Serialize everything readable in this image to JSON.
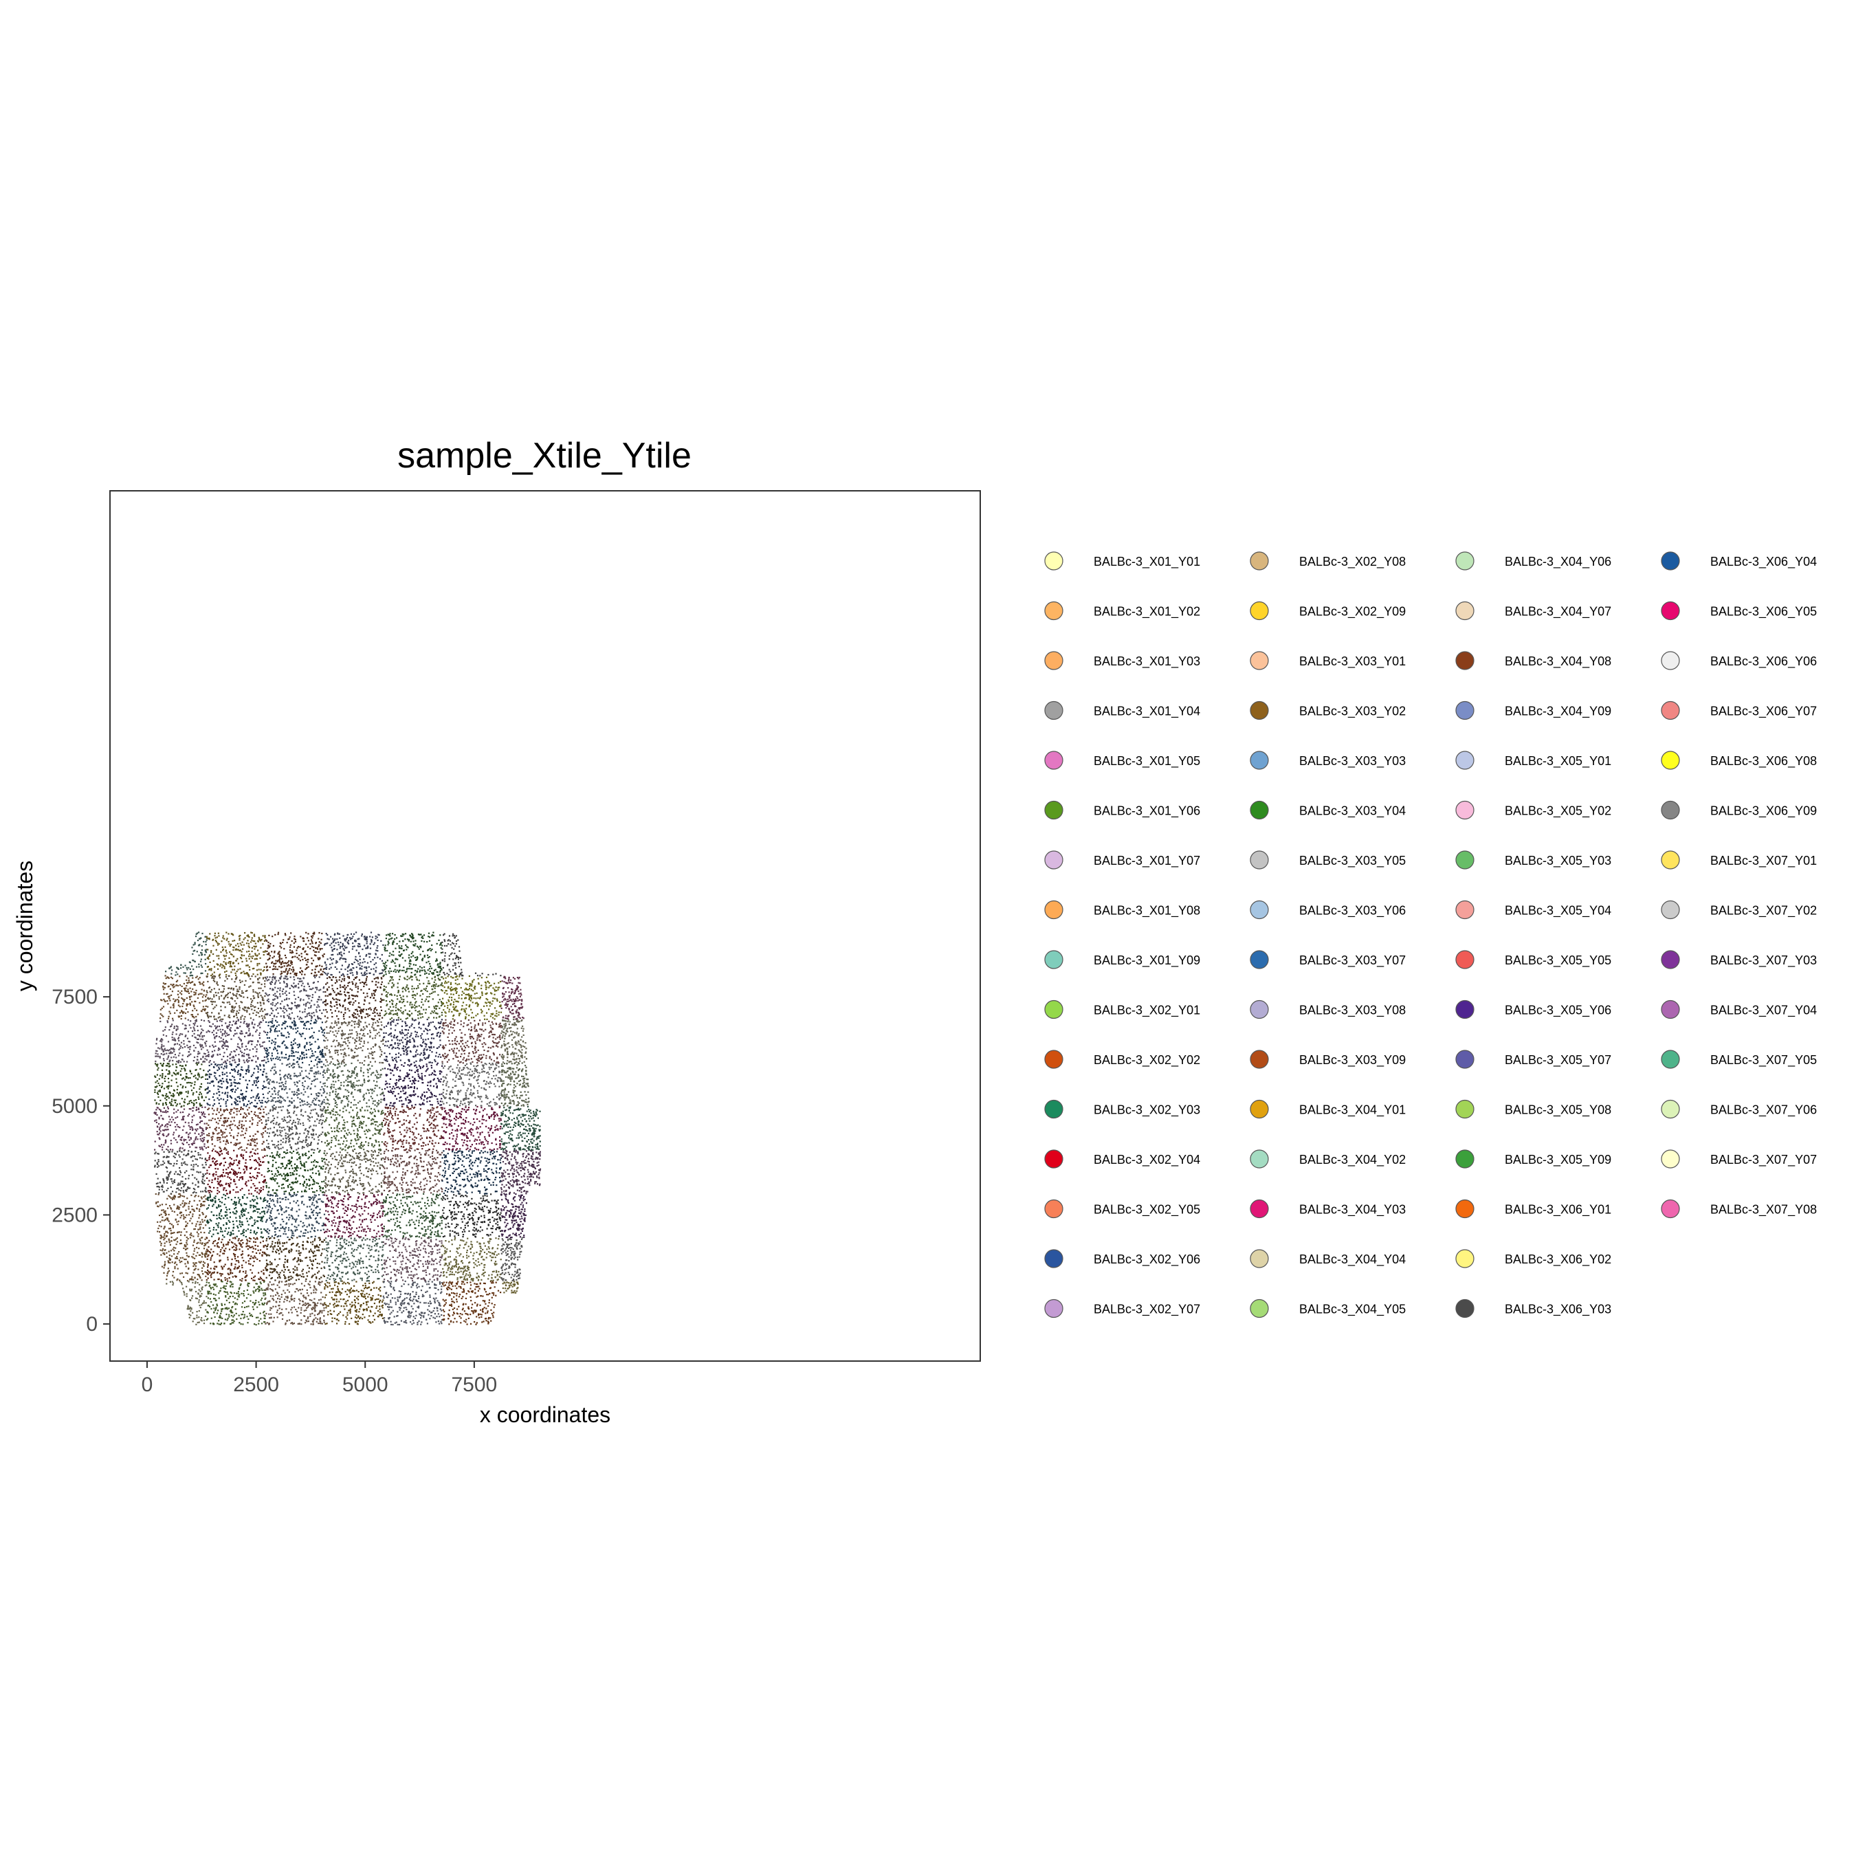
{
  "chart_data": {
    "type": "scatter",
    "title": "sample_Xtile_Ytile",
    "xlabel": "x coordinates",
    "ylabel": "y coordinates",
    "xlim": [
      -850,
      19100
    ],
    "ylim": [
      -850,
      19100
    ],
    "x_ticks": [
      0,
      2500,
      5000,
      7500
    ],
    "x_tick_labels": [
      "0",
      "2500",
      "5000",
      "7500"
    ],
    "y_ticks": [
      0,
      2500,
      5000,
      7500
    ],
    "y_tick_labels": [
      "0",
      "2500",
      "5000",
      "7500"
    ],
    "legend_position": "right",
    "legend_columns": 4,
    "tile_grid": {
      "x_breaks": [
        0,
        1350,
        2700,
        4050,
        5400,
        6750,
        8100,
        9000
      ],
      "y_breaks": [
        0,
        1000,
        2000,
        3000,
        4000,
        5000,
        6000,
        7000,
        8000,
        9000
      ]
    },
    "categories": [
      {
        "label": "BALBc-3_X01_Y01",
        "color": "#FFFFB3",
        "tile": [
          1,
          1
        ]
      },
      {
        "label": "BALBc-3_X01_Y02",
        "color": "#FDB462",
        "tile": [
          1,
          2
        ]
      },
      {
        "label": "BALBc-3_X01_Y03",
        "color": "#FDAE61",
        "tile": [
          1,
          3
        ]
      },
      {
        "label": "BALBc-3_X01_Y04",
        "color": "#A0A0A0",
        "tile": [
          1,
          4
        ]
      },
      {
        "label": "BALBc-3_X01_Y05",
        "color": "#E377C2",
        "tile": [
          1,
          5
        ]
      },
      {
        "label": "BALBc-3_X01_Y06",
        "color": "#5A9A1E",
        "tile": [
          1,
          6
        ]
      },
      {
        "label": "BALBc-3_X01_Y07",
        "color": "#D9B8E0",
        "tile": [
          1,
          7
        ]
      },
      {
        "label": "BALBc-3_X01_Y08",
        "color": "#FDAA55",
        "tile": [
          1,
          8
        ]
      },
      {
        "label": "BALBc-3_X01_Y09",
        "color": "#7FCDBB",
        "tile": [
          1,
          9
        ]
      },
      {
        "label": "BALBc-3_X02_Y01",
        "color": "#94D84A",
        "tile": [
          2,
          1
        ]
      },
      {
        "label": "BALBc-3_X02_Y02",
        "color": "#D0500E",
        "tile": [
          2,
          2
        ]
      },
      {
        "label": "BALBc-3_X02_Y03",
        "color": "#1B8B5E",
        "tile": [
          2,
          3
        ]
      },
      {
        "label": "BALBc-3_X02_Y04",
        "color": "#E0001A",
        "tile": [
          2,
          4
        ]
      },
      {
        "label": "BALBc-3_X02_Y05",
        "color": "#F78058",
        "tile": [
          2,
          5
        ]
      },
      {
        "label": "BALBc-3_X02_Y06",
        "color": "#2A559F",
        "tile": [
          2,
          6
        ]
      },
      {
        "label": "BALBc-3_X02_Y07",
        "color": "#C39BD3",
        "tile": [
          2,
          7
        ]
      },
      {
        "label": "BALBc-3_X02_Y08",
        "color": "#D8B57D",
        "tile": [
          2,
          8
        ]
      },
      {
        "label": "BALBc-3_X02_Y09",
        "color": "#FFD42A",
        "tile": [
          2,
          9
        ]
      },
      {
        "label": "BALBc-3_X03_Y01",
        "color": "#FBC29A",
        "tile": [
          3,
          1
        ]
      },
      {
        "label": "BALBc-3_X03_Y02",
        "color": "#8E611C",
        "tile": [
          3,
          2
        ]
      },
      {
        "label": "BALBc-3_X03_Y03",
        "color": "#6FA2D1",
        "tile": [
          3,
          3
        ]
      },
      {
        "label": "BALBc-3_X03_Y04",
        "color": "#2E8B1F",
        "tile": [
          3,
          4
        ]
      },
      {
        "label": "BALBc-3_X03_Y05",
        "color": "#C3C3C3",
        "tile": [
          3,
          5
        ]
      },
      {
        "label": "BALBc-3_X03_Y06",
        "color": "#A6C5E2",
        "tile": [
          3,
          6
        ]
      },
      {
        "label": "BALBc-3_X03_Y07",
        "color": "#2C6CAE",
        "tile": [
          3,
          7
        ]
      },
      {
        "label": "BALBc-3_X03_Y08",
        "color": "#B3ACD3",
        "tile": [
          3,
          8
        ]
      },
      {
        "label": "BALBc-3_X03_Y09",
        "color": "#B24C17",
        "tile": [
          3,
          9
        ]
      },
      {
        "label": "BALBc-3_X04_Y01",
        "color": "#E0A10F",
        "tile": [
          4,
          1
        ]
      },
      {
        "label": "BALBc-3_X04_Y02",
        "color": "#A4DCC2",
        "tile": [
          4,
          2
        ]
      },
      {
        "label": "BALBc-3_X04_Y03",
        "color": "#E01676",
        "tile": [
          4,
          3
        ]
      },
      {
        "label": "BALBc-3_X04_Y04",
        "color": "#DED3A8",
        "tile": [
          4,
          4
        ]
      },
      {
        "label": "BALBc-3_X04_Y05",
        "color": "#A5DB76",
        "tile": [
          4,
          5
        ]
      },
      {
        "label": "BALBc-3_X04_Y06",
        "color": "#BFE6B8",
        "tile": [
          4,
          6
        ]
      },
      {
        "label": "BALBc-3_X04_Y07",
        "color": "#EFD8B8",
        "tile": [
          4,
          7
        ]
      },
      {
        "label": "BALBc-3_X04_Y08",
        "color": "#8A3E1A",
        "tile": [
          4,
          8
        ]
      },
      {
        "label": "BALBc-3_X04_Y09",
        "color": "#7A8DC6",
        "tile": [
          4,
          9
        ]
      },
      {
        "label": "BALBc-3_X05_Y01",
        "color": "#BCC7E6",
        "tile": [
          5,
          1
        ]
      },
      {
        "label": "BALBc-3_X05_Y02",
        "color": "#F8BBDB",
        "tile": [
          5,
          2
        ]
      },
      {
        "label": "BALBc-3_X05_Y03",
        "color": "#67BD67",
        "tile": [
          5,
          3
        ]
      },
      {
        "label": "BALBc-3_X05_Y04",
        "color": "#F4A09A",
        "tile": [
          5,
          4
        ]
      },
      {
        "label": "BALBc-3_X05_Y05",
        "color": "#EF5B56",
        "tile": [
          5,
          5
        ]
      },
      {
        "label": "BALBc-3_X05_Y06",
        "color": "#4F2590",
        "tile": [
          5,
          6
        ]
      },
      {
        "label": "BALBc-3_X05_Y07",
        "color": "#5F5CA8",
        "tile": [
          5,
          7
        ]
      },
      {
        "label": "BALBc-3_X05_Y08",
        "color": "#A2D456",
        "tile": [
          5,
          8
        ]
      },
      {
        "label": "BALBc-3_X05_Y09",
        "color": "#3BA03B",
        "tile": [
          5,
          9
        ]
      },
      {
        "label": "BALBc-3_X06_Y01",
        "color": "#F2690E",
        "tile": [
          6,
          1
        ]
      },
      {
        "label": "BALBc-3_X06_Y02",
        "color": "#FFF580",
        "tile": [
          6,
          2
        ]
      },
      {
        "label": "BALBc-3_X06_Y03",
        "color": "#4B4B4B",
        "tile": [
          6,
          3
        ]
      },
      {
        "label": "BALBc-3_X06_Y04",
        "color": "#1C5BA0",
        "tile": [
          6,
          4
        ]
      },
      {
        "label": "BALBc-3_X06_Y05",
        "color": "#E7086F",
        "tile": [
          6,
          5
        ]
      },
      {
        "label": "BALBc-3_X06_Y06",
        "color": "#EFEFEF",
        "tile": [
          6,
          6
        ]
      },
      {
        "label": "BALBc-3_X06_Y07",
        "color": "#F08683",
        "tile": [
          6,
          7
        ]
      },
      {
        "label": "BALBc-3_X06_Y08",
        "color": "#FFFF1F",
        "tile": [
          6,
          8
        ]
      },
      {
        "label": "BALBc-3_X06_Y09",
        "color": "#858585",
        "tile": [
          6,
          9
        ]
      },
      {
        "label": "BALBc-3_X07_Y01",
        "color": "#FFE45E",
        "tile": [
          7,
          1
        ]
      },
      {
        "label": "BALBc-3_X07_Y02",
        "color": "#CBCBCB",
        "tile": [
          7,
          2
        ]
      },
      {
        "label": "BALBc-3_X07_Y03",
        "color": "#7F3399",
        "tile": [
          7,
          3
        ]
      },
      {
        "label": "BALBc-3_X07_Y04",
        "color": "#AC66B0",
        "tile": [
          7,
          4
        ]
      },
      {
        "label": "BALBc-3_X07_Y05",
        "color": "#4FB38A",
        "tile": [
          7,
          5
        ]
      },
      {
        "label": "BALBc-3_X07_Y06",
        "color": "#DCF2B8",
        "tile": [
          7,
          6
        ]
      },
      {
        "label": "BALBc-3_X07_Y07",
        "color": "#FFFFCC",
        "tile": [
          7,
          7
        ]
      },
      {
        "label": "BALBc-3_X07_Y08",
        "color": "#EF66AE",
        "tile": [
          7,
          8
        ]
      }
    ]
  }
}
